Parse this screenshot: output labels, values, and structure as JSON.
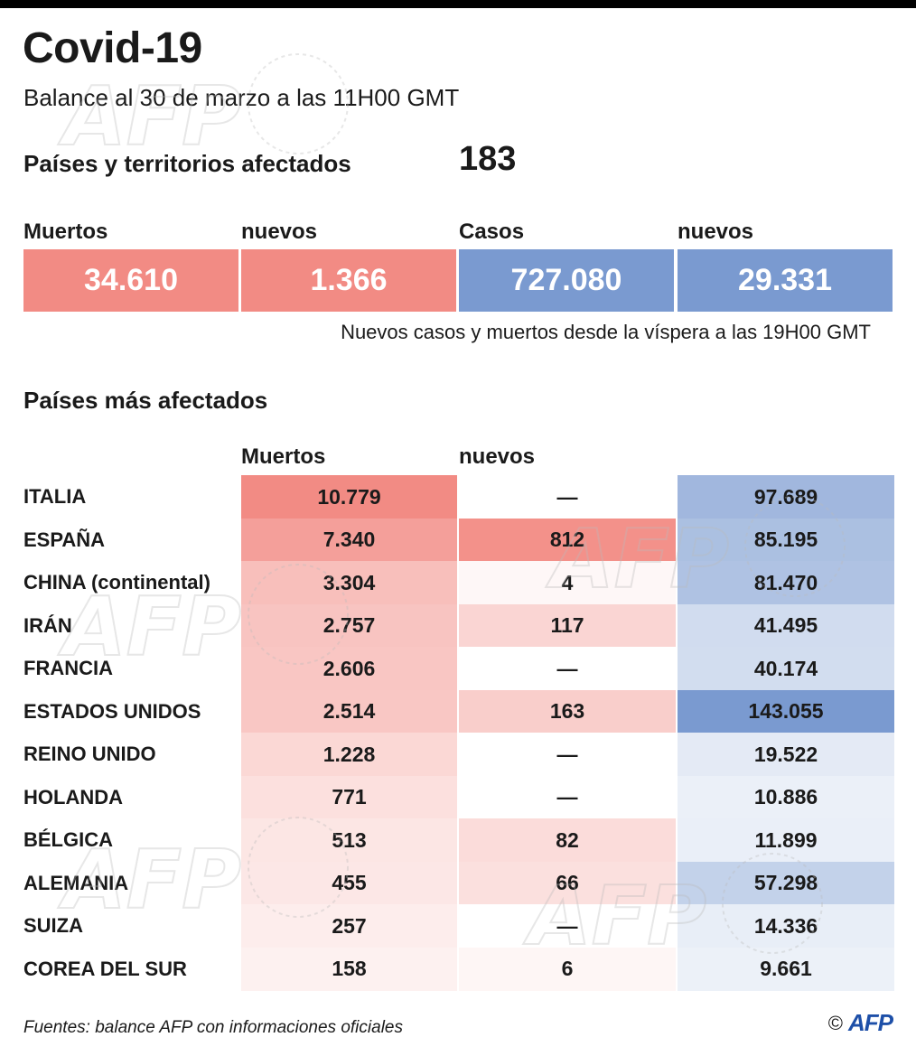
{
  "header": {
    "title": "Covid-19",
    "subtitle": "Balance al 30 de marzo a las 11H00 GMT",
    "countries_label": "Países y territorios afectados",
    "countries_value": "183"
  },
  "summary": {
    "deaths_label": "Muertos",
    "deaths_value": "34.610",
    "new_deaths_label": "nuevos",
    "new_deaths_value": "1.366",
    "cases_label": "Casos",
    "cases_value": "727.080",
    "new_cases_label": "nuevos",
    "new_cases_value": "29.331",
    "note": "Nuevos casos y muertos desde la víspera a las 19H00 GMT"
  },
  "colors": {
    "deaths": "#f28b84",
    "cases": "#7a9ad0"
  },
  "chart_data": {
    "type": "table",
    "title": "Países más afectados",
    "columns": [
      "Muertos",
      "nuevos",
      ""
    ],
    "rows": [
      {
        "country": "ITALIA",
        "deaths": "10.779",
        "new_deaths": "—",
        "cases": "97.689",
        "d": 10779,
        "nd": 0,
        "c": 97689
      },
      {
        "country": "ESPAÑA",
        "deaths": "7.340",
        "new_deaths": "812",
        "cases": "85.195",
        "d": 7340,
        "nd": 812,
        "c": 85195
      },
      {
        "country": "CHINA (continental)",
        "deaths": "3.304",
        "new_deaths": "4",
        "cases": "81.470",
        "d": 3304,
        "nd": 4,
        "c": 81470
      },
      {
        "country": "IRÁN",
        "deaths": "2.757",
        "new_deaths": "117",
        "cases": "41.495",
        "d": 2757,
        "nd": 117,
        "c": 41495
      },
      {
        "country": "FRANCIA",
        "deaths": "2.606",
        "new_deaths": "—",
        "cases": "40.174",
        "d": 2606,
        "nd": 0,
        "c": 40174
      },
      {
        "country": "ESTADOS UNIDOS",
        "deaths": "2.514",
        "new_deaths": "163",
        "cases": "143.055",
        "d": 2514,
        "nd": 163,
        "c": 143055
      },
      {
        "country": "REINO UNIDO",
        "deaths": "1.228",
        "new_deaths": "—",
        "cases": "19.522",
        "d": 1228,
        "nd": 0,
        "c": 19522
      },
      {
        "country": "HOLANDA",
        "deaths": "771",
        "new_deaths": "—",
        "cases": "10.886",
        "d": 771,
        "nd": 0,
        "c": 10886
      },
      {
        "country": "BÉLGICA",
        "deaths": "513",
        "new_deaths": "82",
        "cases": "11.899",
        "d": 513,
        "nd": 82,
        "c": 11899
      },
      {
        "country": "ALEMANIA",
        "deaths": "455",
        "new_deaths": "66",
        "cases": "57.298",
        "d": 455,
        "nd": 66,
        "c": 57298
      },
      {
        "country": "SUIZA",
        "deaths": "257",
        "new_deaths": "—",
        "cases": "14.336",
        "d": 257,
        "nd": 0,
        "c": 14336
      },
      {
        "country": "COREA DEL SUR",
        "deaths": "158",
        "new_deaths": "6",
        "cases": "9.661",
        "d": 158,
        "nd": 6,
        "c": 9661
      }
    ]
  },
  "footer": {
    "source": "Fuentes: balance AFP con informaciones oficiales",
    "copyright": "©",
    "brand": "AFP"
  }
}
